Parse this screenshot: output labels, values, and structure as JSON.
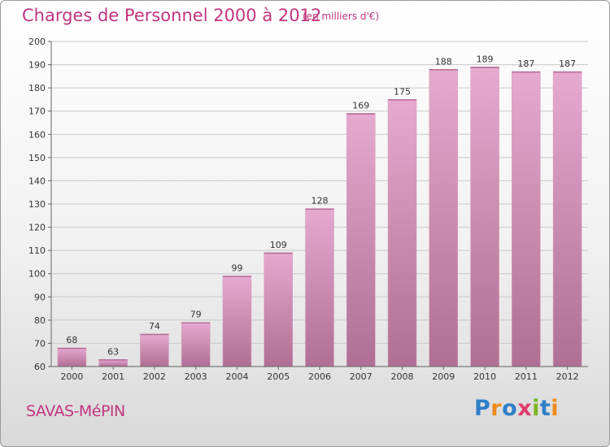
{
  "chart_data": {
    "type": "bar",
    "title": "Charges de Personnel 2000 à 2012",
    "subtitle": "(en milliers d'€)",
    "categories": [
      "2000",
      "2001",
      "2002",
      "2003",
      "2004",
      "2005",
      "2006",
      "2007",
      "2008",
      "2009",
      "2010",
      "2011",
      "2012"
    ],
    "values": [
      68,
      63,
      74,
      79,
      99,
      109,
      128,
      169,
      175,
      188,
      189,
      187,
      187
    ],
    "ylim": [
      60,
      200
    ],
    "yticks": [
      60,
      70,
      80,
      90,
      100,
      110,
      120,
      130,
      140,
      150,
      160,
      170,
      180,
      190,
      200
    ],
    "grid": true,
    "bar_color_top": "#e6a9cf",
    "bar_color_bottom": "#b06f95"
  },
  "place_name": "SAVAS-MéPIN",
  "logo": {
    "letters": [
      "P",
      "r",
      "o",
      "x",
      "i",
      "t",
      "i"
    ],
    "colors": [
      "#2f7fc8",
      "#f08a1c",
      "#2f7fc8",
      "#e23a6e",
      "#7ab51d",
      "#2f7fc8",
      "#f08a1c"
    ]
  }
}
